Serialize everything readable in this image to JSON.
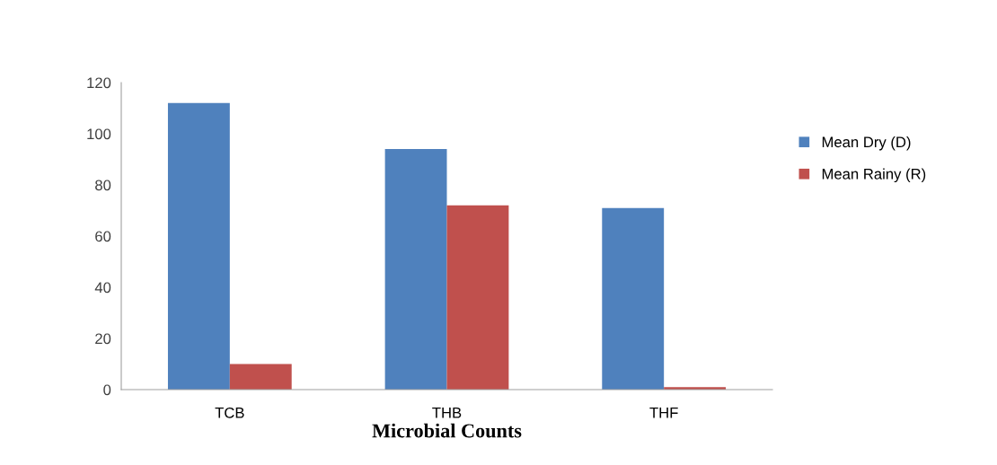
{
  "chart_data": {
    "type": "bar",
    "xlabel": "Microbial Counts",
    "categories": [
      "TCB",
      "THB",
      "THF"
    ],
    "series": [
      {
        "name": "Mean Dry (D)",
        "color": "#4f81bd",
        "values": [
          112,
          94,
          71
        ]
      },
      {
        "name": "Mean Rainy (R)",
        "color": "#c0504d",
        "values": [
          10,
          72,
          1
        ]
      }
    ],
    "ylim": [
      0,
      120
    ],
    "yticks": [
      0,
      20,
      40,
      60,
      80,
      100,
      120
    ],
    "grid": false,
    "legend": "right"
  }
}
